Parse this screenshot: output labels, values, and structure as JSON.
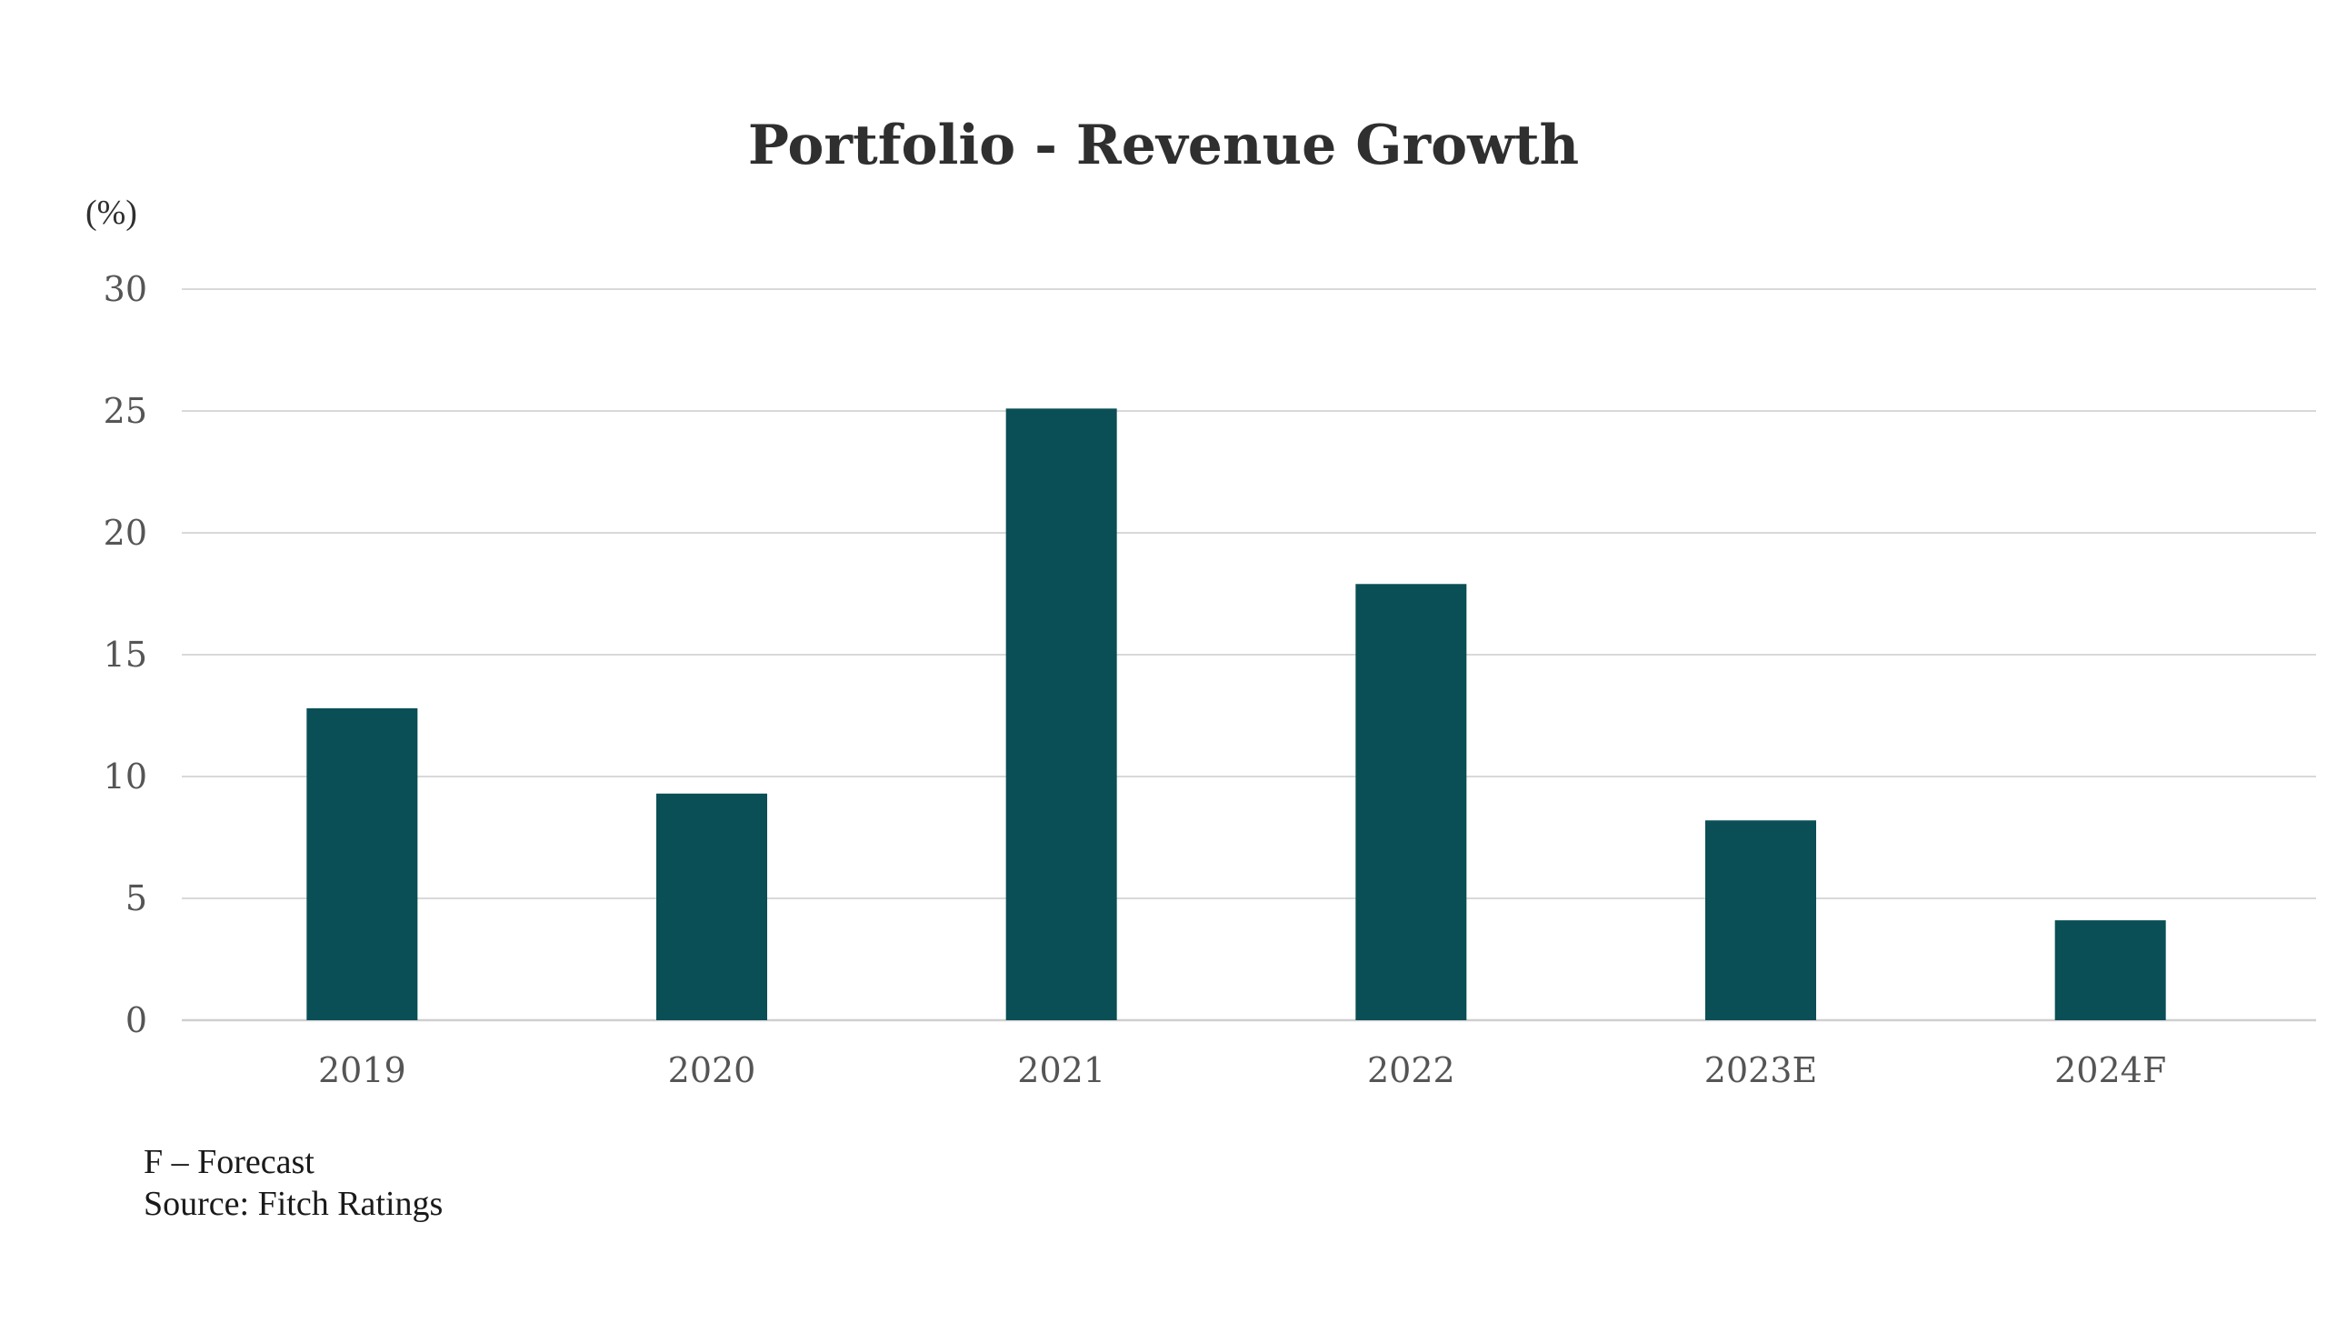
{
  "chart_data": {
    "type": "bar",
    "title": "Portfolio - Revenue Growth",
    "y_unit_label": "(%)",
    "categories": [
      "2019",
      "2020",
      "2021",
      "2022",
      "2023E",
      "2024F"
    ],
    "values": [
      12.8,
      9.3,
      25.1,
      17.9,
      8.2,
      4.1
    ],
    "ylim": [
      0,
      30
    ],
    "yticks": [
      "0",
      "5",
      "10",
      "15",
      "20",
      "25",
      "30"
    ],
    "grid": true,
    "legend": "none",
    "bar_color": "#094f55"
  },
  "footnotes": {
    "forecast_note": "F – Forecast",
    "source": "Source: Fitch Ratings"
  }
}
